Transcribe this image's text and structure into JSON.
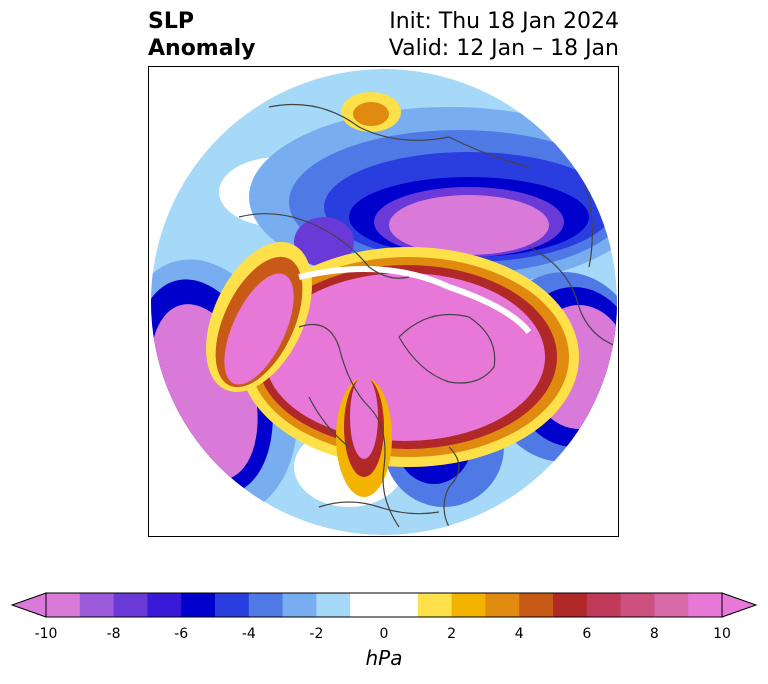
{
  "title": {
    "left_line1": "SLP",
    "left_line2": "Anomaly",
    "right_line1": "Init: Thu 18 Jan 2024",
    "right_line2": "Valid: 12 Jan – 18 Jan"
  },
  "colorbar": {
    "unit": "hPa",
    "ticks": [
      "-10",
      "-8",
      "-6",
      "-4",
      "-2",
      "0",
      "2",
      "4",
      "6",
      "8",
      "10"
    ],
    "colors": [
      "#d97ad9",
      "#9b5ad9",
      "#6a3ad9",
      "#3a1ad9",
      "#0000cc",
      "#2a3ee0",
      "#4f7ae6",
      "#78aef0",
      "#a6d8f7",
      "#ffffff",
      "#ffffff",
      "#fde04a",
      "#f2b400",
      "#e08a10",
      "#c85a18",
      "#b02828",
      "#c03a5a",
      "#cc5080",
      "#d86aa8",
      "#e878d8"
    ]
  }
}
